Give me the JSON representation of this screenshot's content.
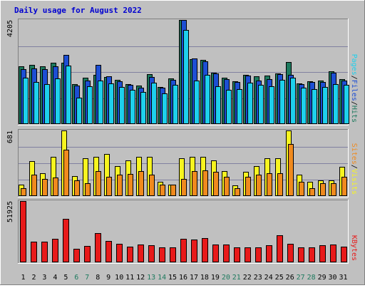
{
  "chart_data": {
    "type": "bar",
    "title": "Daily usage for August 2022",
    "categories": [
      "1",
      "2",
      "3",
      "4",
      "5",
      "6",
      "7",
      "8",
      "9",
      "10",
      "11",
      "12",
      "13",
      "14",
      "15",
      "16",
      "17",
      "18",
      "19",
      "20",
      "21",
      "22",
      "23",
      "24",
      "25",
      "26",
      "27",
      "28",
      "29",
      "30",
      "31"
    ],
    "weekend_days": [
      "6",
      "7",
      "13",
      "14",
      "20",
      "21",
      "27",
      "28"
    ],
    "panels": [
      {
        "name": "top",
        "ymax_label": "4205",
        "ymax": 4205,
        "right_label_parts": [
          "Pages",
          "Files",
          "Hits"
        ],
        "grid": true,
        "series": [
          {
            "name": "Hits",
            "color": "#1d7a5e",
            "values": [
              2340,
              2400,
              2320,
              2480,
              2480,
              1600,
              1870,
              2000,
              1900,
              1780,
              1610,
              1560,
              2010,
              1510,
              1840,
              4205,
              2630,
              2600,
              2080,
              1860,
              1720,
              2000,
              1940,
              1950,
              2040,
              2510,
              1640,
              1730,
              1760,
              2140,
              1820
            ]
          },
          {
            "name": "Files",
            "color": "#1d4fd4",
            "values": [
              2220,
              2260,
              2230,
              2340,
              2790,
              1550,
              1760,
              2400,
              1920,
              1740,
              1590,
              1480,
              1890,
              1480,
              1790,
              4205,
              2640,
              2530,
              2040,
              1810,
              1700,
              1950,
              1770,
              1820,
              2020,
              1980,
              1600,
              1690,
              1700,
              2060,
              1760
            ]
          },
          {
            "name": "Pages",
            "color": "#1ed0ec",
            "values": [
              1870,
              1700,
              1620,
              1850,
              2350,
              1060,
              1530,
              1770,
              1640,
              1490,
              1380,
              1290,
              1660,
              1240,
              1570,
              3790,
              1750,
              2000,
              1530,
              1380,
              1420,
              1670,
              1590,
              1540,
              1800,
              1880,
              1470,
              1420,
              1500,
              1610,
              1580
            ]
          }
        ]
      },
      {
        "name": "middle",
        "ymax_label": "681",
        "ymax": 681,
        "right_label_parts": [
          "Sites",
          "Visits"
        ],
        "grid": true,
        "series": [
          {
            "name": "Visits",
            "color": "#f7f420",
            "values": [
              120,
              360,
              240,
              410,
              681,
              210,
              390,
              410,
              440,
              310,
              370,
              410,
              410,
              150,
              120,
              390,
              410,
              410,
              370,
              260,
              110,
              250,
              310,
              390,
              390,
              681,
              220,
              150,
              160,
              160,
              300
            ]
          },
          {
            "name": "Sites",
            "color": "#f08a1e",
            "values": [
              85,
              220,
              180,
              190,
              480,
              160,
              130,
              260,
              200,
              220,
              230,
              260,
              220,
              120,
              120,
              180,
              260,
              270,
              250,
              200,
              80,
              200,
              220,
              240,
              240,
              540,
              150,
              80,
              130,
              130,
              200
            ]
          }
        ]
      },
      {
        "name": "bottom",
        "ymax_label": "51925",
        "ymax": 51925,
        "right_label_parts": [
          "KBytes"
        ],
        "grid": false,
        "series": [
          {
            "name": "KBytes",
            "color": "#e81a1a",
            "values": [
              51925,
              17800,
              17800,
              19700,
              36800,
              11600,
              14100,
              24800,
              18300,
              15900,
              13200,
              14900,
              14300,
              12600,
              12900,
              19900,
              19400,
              20400,
              15100,
              15000,
              12600,
              12900,
              12900,
              14700,
              22800,
              15700,
              12600,
              12900,
              14700,
              15100,
              13200
            ]
          }
        ]
      }
    ],
    "colors": {
      "title": "#0000d0",
      "weekend_label": "#1d7a5e",
      "weekday_label": "#000000",
      "panel_bg": "#c0c0c0",
      "grid": "#8080a0"
    }
  }
}
